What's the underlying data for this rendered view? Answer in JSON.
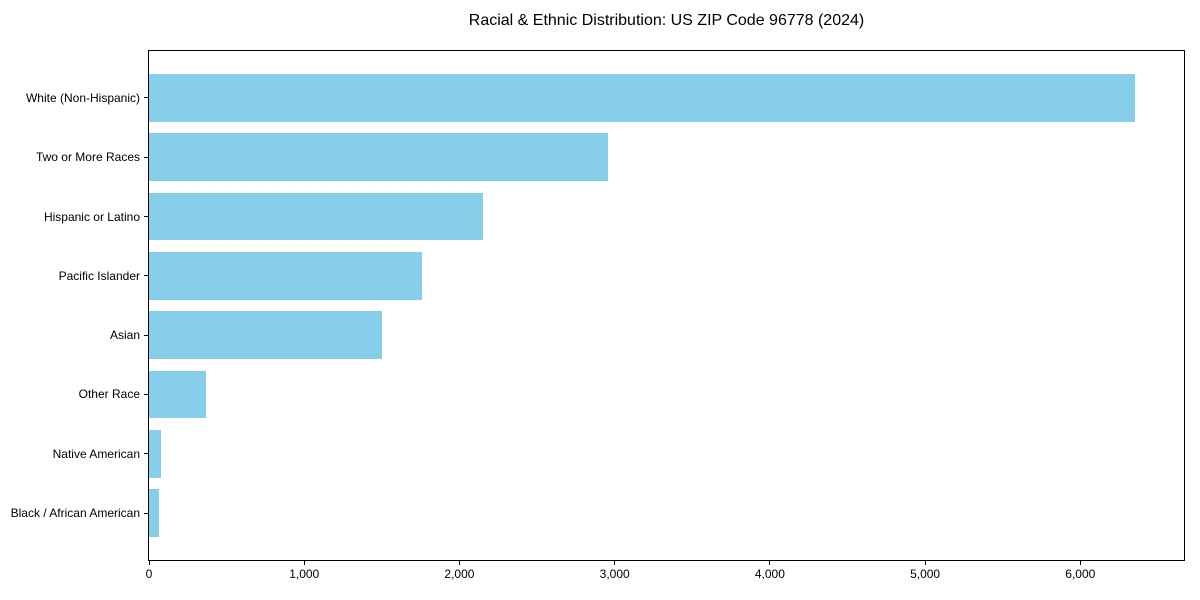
{
  "chart_data": {
    "type": "bar",
    "orientation": "horizontal",
    "title": "Racial & Ethnic Distribution: US ZIP Code 96778 (2024)",
    "xlabel": "",
    "ylabel": "",
    "categories": [
      "White (Non-Hispanic)",
      "Two or More Races",
      "Hispanic or Latino",
      "Pacific Islander",
      "Asian",
      "Other Race",
      "Native American",
      "Black / African American"
    ],
    "values": [
      6350,
      2960,
      2150,
      1760,
      1500,
      370,
      80,
      65
    ],
    "bar_color": "#87CEEB",
    "xlim": [
      0,
      6668
    ],
    "x_ticks": [
      {
        "value": 0,
        "label": "0"
      },
      {
        "value": 1000,
        "label": "1,000"
      },
      {
        "value": 2000,
        "label": "2,000"
      },
      {
        "value": 3000,
        "label": "3,000"
      },
      {
        "value": 4000,
        "label": "4,000"
      },
      {
        "value": 5000,
        "label": "5,000"
      },
      {
        "value": 6000,
        "label": "6,000"
      }
    ],
    "grid": false,
    "legend": "none",
    "background_color": "#ffffff",
    "border_color": "#000000"
  }
}
